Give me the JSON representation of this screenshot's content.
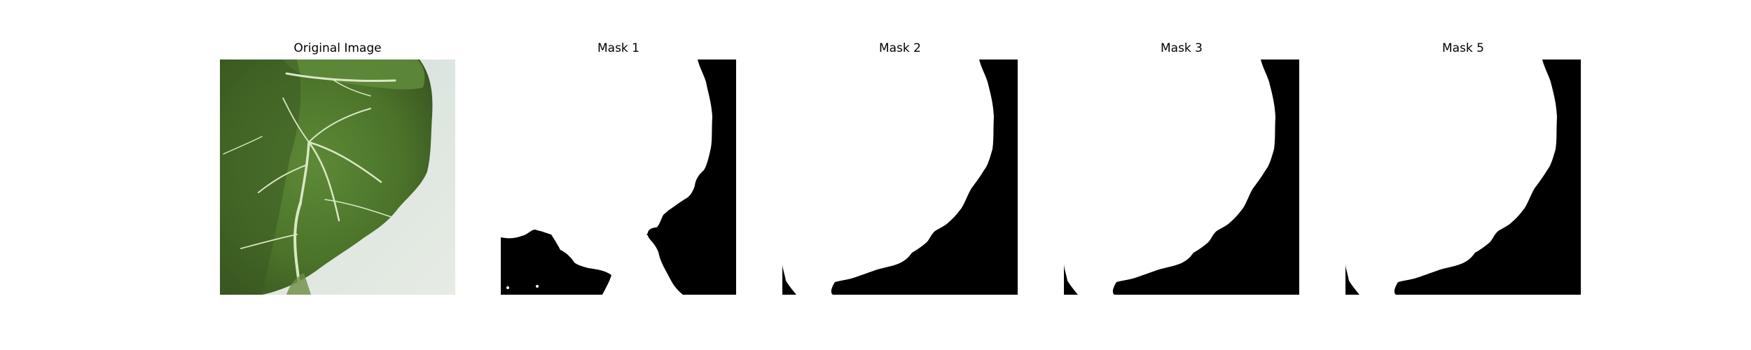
{
  "figure": {
    "panels": [
      {
        "title": "Original Image"
      },
      {
        "title": "Mask 1"
      },
      {
        "title": "Mask 2"
      },
      {
        "title": "Mask 3"
      },
      {
        "title": "Mask 5"
      }
    ]
  },
  "colors": {
    "background": "#ffffff",
    "mask_foreground": "#ffffff",
    "mask_background": "#000000",
    "leaf_dark": "#3c5a24",
    "leaf_mid": "#4f7a30",
    "leaf_light": "#6e9440",
    "vein": "#d8e6c0",
    "backdrop": "#d6e0dc"
  }
}
